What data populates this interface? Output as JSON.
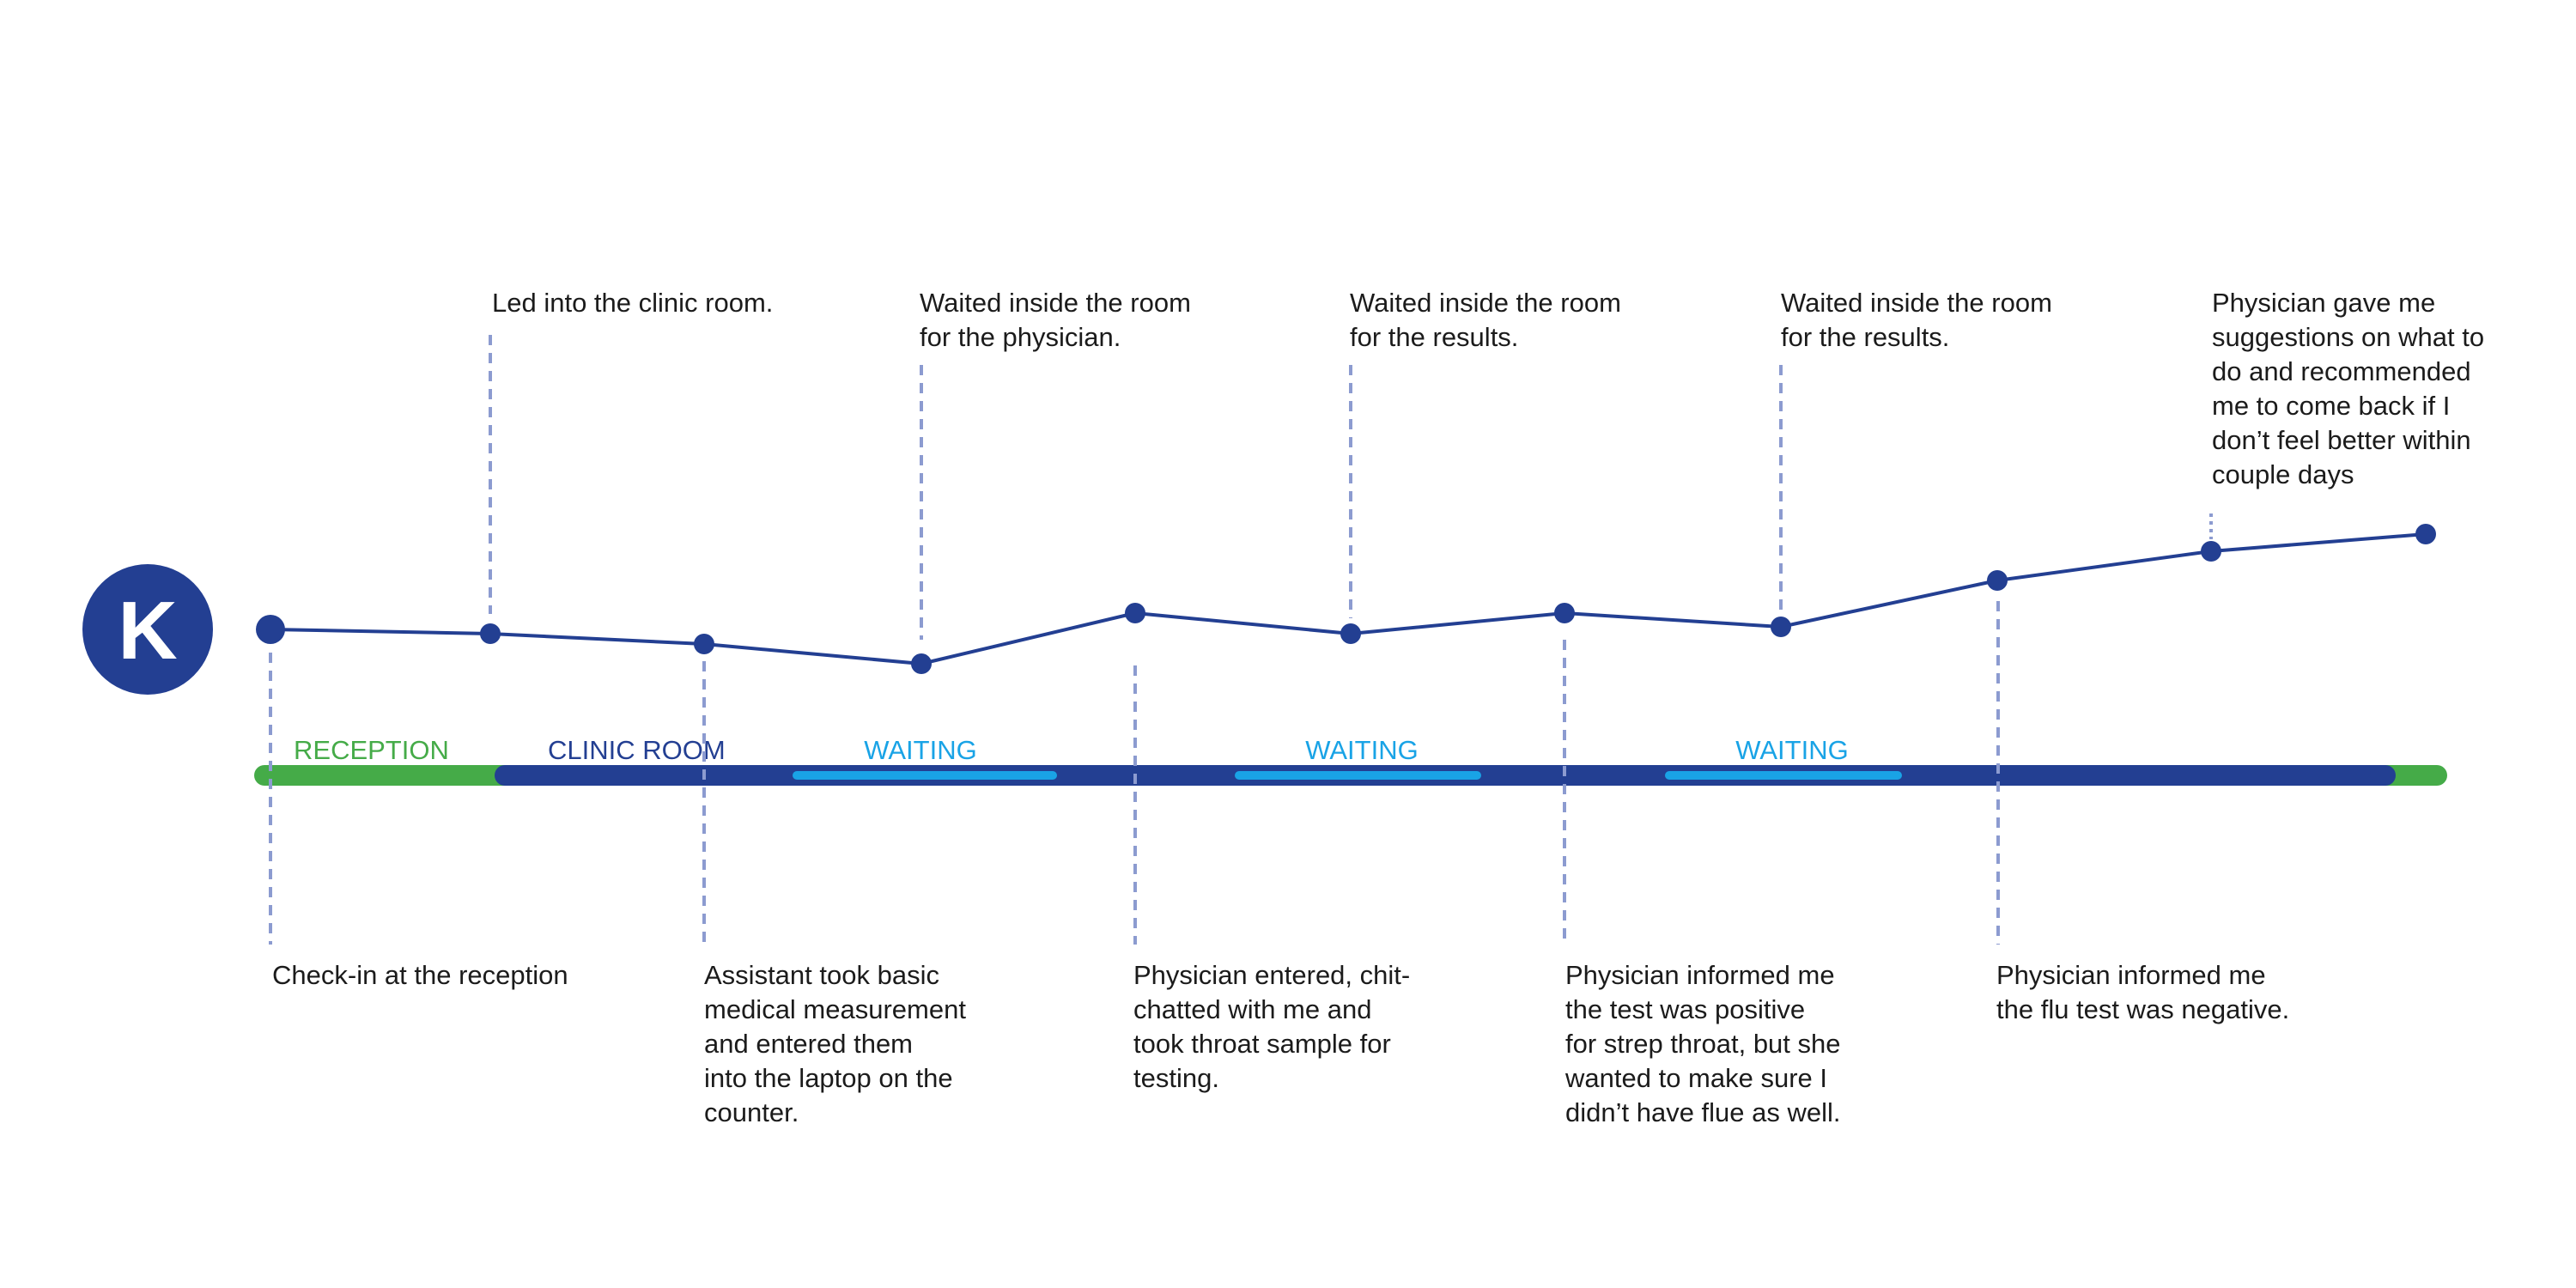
{
  "persona": {
    "initial": "K"
  },
  "colors": {
    "journey_line": "#233f92",
    "connector": "#8c9bd0",
    "reception_phase": "#45ab48",
    "clinic_phase": "#233f92",
    "waiting_phase": "#19a3e6",
    "text": "#1b1b1b"
  },
  "phases": [
    {
      "label": "RECEPTION",
      "type": "reception"
    },
    {
      "label": "CLINIC ROOM",
      "type": "clinic"
    },
    {
      "label": "WAITING",
      "type": "waiting"
    },
    {
      "label": "WAITING",
      "type": "waiting"
    },
    {
      "label": "WAITING",
      "type": "waiting"
    }
  ],
  "events": [
    {
      "lines": [
        "Check-in at the reception"
      ],
      "side": "below"
    },
    {
      "lines": [
        "Led into the clinic room."
      ],
      "side": "above"
    },
    {
      "lines": [
        "Assistant took basic",
        "medical measurement",
        "and entered them",
        "into the laptop on the",
        "counter."
      ],
      "side": "below"
    },
    {
      "lines": [
        "Waited inside the room",
        "for the physician."
      ],
      "side": "above"
    },
    {
      "lines": [
        "Physician entered, chit-",
        "chatted with me and",
        "took throat sample for",
        "testing."
      ],
      "side": "below"
    },
    {
      "lines": [
        "Waited inside the room",
        "for the results."
      ],
      "side": "above"
    },
    {
      "lines": [
        "Physician informed me",
        "the test was positive",
        "for strep throat, but she",
        "wanted to make sure I",
        "didn’t have flue as well."
      ],
      "side": "below"
    },
    {
      "lines": [
        "Waited inside the room",
        "for the results."
      ],
      "side": "above"
    },
    {
      "lines": [
        "Physician informed me",
        "the flu test was negative."
      ],
      "side": "below"
    },
    {
      "lines": [
        "Physician gave me",
        "suggestions on what to",
        "do and recommended",
        "me to come back if I",
        "don’t feel better within",
        "couple days"
      ],
      "side": "above"
    },
    {
      "lines": [],
      "side": "none"
    }
  ]
}
